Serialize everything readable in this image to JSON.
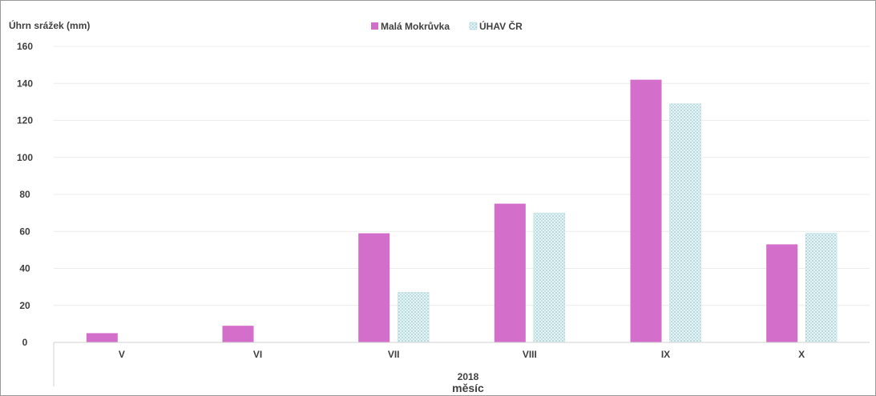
{
  "chart_data": {
    "type": "bar",
    "categories": [
      "V",
      "VI",
      "VII",
      "VIII",
      "IX",
      "X"
    ],
    "group_label": "2018",
    "xlabel": "měsíc",
    "ylabel": "Úhrn srážek (mm)",
    "ylim": [
      0,
      160
    ],
    "yticks": [
      0,
      20,
      40,
      60,
      80,
      100,
      120,
      140,
      160
    ],
    "grid": true,
    "legend_position": "top",
    "series": [
      {
        "name": "Malá Mokrůvka",
        "values": [
          5,
          9,
          59,
          75,
          142,
          53
        ],
        "color": "#d36fcb",
        "fill": "solid"
      },
      {
        "name": "ÚHAV ČR",
        "values": [
          null,
          null,
          27,
          70,
          129,
          59
        ],
        "color": "#a9d7dc",
        "fill": "dotted-pattern"
      }
    ]
  }
}
